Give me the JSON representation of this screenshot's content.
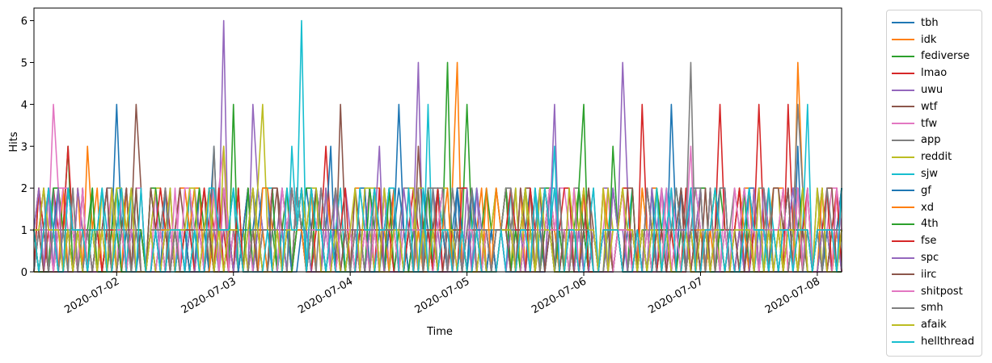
{
  "chart_data": {
    "type": "line",
    "xlabel": "Time",
    "ylabel": "Hits",
    "ylim": [
      0,
      6.3
    ],
    "y_ticks": [
      "0",
      "1",
      "2",
      "3",
      "4",
      "5",
      "6"
    ],
    "x_ticks": [
      "2020-07-02",
      "2020-07-03",
      "2020-07-04",
      "2020-07-05",
      "2020-07-06",
      "2020-07-07",
      "2020-07-08"
    ],
    "x_range": [
      "2020-07-01 07:00",
      "2020-07-08 05:00"
    ],
    "grid": false,
    "legend_position": "outside-right",
    "sampling": "hourly",
    "series": [
      {
        "name": "tbh",
        "color": "#1f77b4",
        "peaks": [
          [
            "2020-07-02 00:00",
            4
          ],
          [
            "2020-07-02 20:00",
            3
          ],
          [
            "2020-07-04 10:00",
            4
          ],
          [
            "2020-07-06 18:00",
            4
          ],
          [
            "2020-07-07 20:00",
            3
          ]
        ]
      },
      {
        "name": "idk",
        "color": "#ff7f0e",
        "peaks": [
          [
            "2020-07-01 18:00",
            3
          ],
          [
            "2020-07-04 22:00",
            5
          ],
          [
            "2020-07-07 20:00",
            5
          ]
        ]
      },
      {
        "name": "fediverse",
        "color": "#2ca02c",
        "peaks": [
          [
            "2020-07-01 14:00",
            3
          ],
          [
            "2020-07-03 00:00",
            4
          ],
          [
            "2020-07-04 20:00",
            5
          ],
          [
            "2020-07-05 00:00",
            4
          ],
          [
            "2020-07-06 00:00",
            4
          ]
        ]
      },
      {
        "name": "lmao",
        "color": "#d62728",
        "peaks": [
          [
            "2020-07-03 19:00",
            3
          ],
          [
            "2020-07-04 18:00",
            2
          ],
          [
            "2020-07-06 12:00",
            4
          ],
          [
            "2020-07-07 18:00",
            4
          ]
        ]
      },
      {
        "name": "uwu",
        "color": "#9467bd",
        "peaks": [
          [
            "2020-07-02 22:00",
            6
          ],
          [
            "2020-07-03 04:00",
            4
          ],
          [
            "2020-07-04 14:00",
            5
          ],
          [
            "2020-07-06 08:00",
            5
          ]
        ]
      },
      {
        "name": "wtf",
        "color": "#8c564b",
        "peaks": [
          [
            "2020-07-02 04:00",
            4
          ],
          [
            "2020-07-03 22:00",
            4
          ],
          [
            "2020-07-04 14:00",
            3
          ]
        ]
      },
      {
        "name": "tfw",
        "color": "#e377c2",
        "peaks": [
          [
            "2020-07-01 11:00",
            4
          ],
          [
            "2020-07-02 22:00",
            3
          ],
          [
            "2020-07-06 22:00",
            3
          ]
        ]
      },
      {
        "name": "app",
        "color": "#7f7f7f",
        "peaks": [
          [
            "2020-07-02 20:00",
            3
          ],
          [
            "2020-07-06 22:00",
            5
          ],
          [
            "2020-07-07 20:00",
            4
          ]
        ]
      },
      {
        "name": "reddit",
        "color": "#bcbd22",
        "peaks": [
          [
            "2020-07-02 22:00",
            3
          ],
          [
            "2020-07-03 06:00",
            4
          ]
        ]
      },
      {
        "name": "sjw",
        "color": "#17becf",
        "peaks": [
          [
            "2020-07-03 12:00",
            3
          ],
          [
            "2020-07-03 14:00",
            6
          ],
          [
            "2020-07-04 16:00",
            4
          ],
          [
            "2020-07-07 22:00",
            4
          ]
        ]
      },
      {
        "name": "gf",
        "color": "#1f77b4",
        "peaks": [
          [
            "2020-07-01 14:00",
            2
          ],
          [
            "2020-07-03 20:00",
            3
          ],
          [
            "2020-07-05 12:00",
            2
          ]
        ]
      },
      {
        "name": "xd",
        "color": "#ff7f0e",
        "peaks": [
          [
            "2020-07-02 16:00",
            2
          ],
          [
            "2020-07-05 08:00",
            2
          ]
        ]
      },
      {
        "name": "4th",
        "color": "#2ca02c",
        "peaks": [
          [
            "2020-07-02 08:00",
            2
          ],
          [
            "2020-07-06 06:00",
            3
          ]
        ]
      },
      {
        "name": "fse",
        "color": "#d62728",
        "peaks": [
          [
            "2020-07-01 14:00",
            3
          ],
          [
            "2020-07-07 04:00",
            4
          ],
          [
            "2020-07-07 12:00",
            4
          ]
        ]
      },
      {
        "name": "spc",
        "color": "#9467bd",
        "peaks": [
          [
            "2020-07-04 06:00",
            3
          ],
          [
            "2020-07-05 18:00",
            4
          ]
        ]
      },
      {
        "name": "iirc",
        "color": "#8c564b",
        "peaks": [
          [
            "2020-07-01 22:00",
            2
          ],
          [
            "2020-07-06 20:00",
            2
          ]
        ]
      },
      {
        "name": "shitpost",
        "color": "#e377c2",
        "peaks": [
          [
            "2020-07-02 12:00",
            2
          ],
          [
            "2020-07-03 18:00",
            2
          ]
        ]
      },
      {
        "name": "smh",
        "color": "#7f7f7f",
        "peaks": [
          [
            "2020-07-05 16:00",
            2
          ],
          [
            "2020-07-07 00:00",
            2
          ]
        ]
      },
      {
        "name": "afaik",
        "color": "#bcbd22",
        "peaks": [
          [
            "2020-07-02 16:00",
            2
          ],
          [
            "2020-07-06 00:00",
            2
          ]
        ]
      },
      {
        "name": "hellthread",
        "color": "#17becf",
        "peaks": [
          [
            "2020-07-01 14:00",
            2
          ],
          [
            "2020-07-05 18:00",
            3
          ]
        ]
      }
    ]
  }
}
